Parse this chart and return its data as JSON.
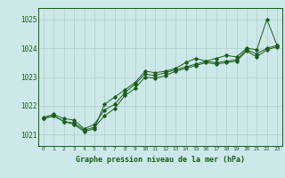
{
  "title": "Graphe pression niveau de la mer (hPa)",
  "bg_color": "#cce8e8",
  "grid_color": "#b0cccc",
  "line_color": "#1a5c1a",
  "xlim": [
    -0.5,
    23.5
  ],
  "ylim": [
    1020.6,
    1025.4
  ],
  "yticks": [
    1021,
    1022,
    1023,
    1024,
    1025
  ],
  "xticks": [
    0,
    1,
    2,
    3,
    4,
    5,
    6,
    7,
    8,
    9,
    10,
    11,
    12,
    13,
    14,
    15,
    16,
    17,
    18,
    19,
    20,
    21,
    22,
    23
  ],
  "series1": {
    "x": [
      0,
      1,
      2,
      3,
      4,
      5,
      6,
      7,
      8,
      9,
      10,
      11,
      12,
      13,
      14,
      15,
      16,
      17,
      18,
      19,
      20,
      21,
      22,
      23
    ],
    "y": [
      1021.6,
      1021.7,
      1021.55,
      1021.5,
      1021.2,
      1021.35,
      1021.85,
      1022.05,
      1022.45,
      1022.75,
      1023.1,
      1023.05,
      1023.15,
      1023.25,
      1023.35,
      1023.45,
      1023.55,
      1023.5,
      1023.55,
      1023.6,
      1023.95,
      1023.8,
      1024.0,
      1024.1
    ]
  },
  "series2": {
    "x": [
      0,
      1,
      2,
      3,
      4,
      5,
      6,
      7,
      8,
      9,
      10,
      11,
      12,
      13,
      14,
      15,
      16,
      17,
      18,
      19,
      20,
      21,
      22,
      23
    ],
    "y": [
      1021.55,
      1021.65,
      1021.45,
      1021.4,
      1021.15,
      1021.25,
      1021.65,
      1021.9,
      1022.35,
      1022.6,
      1023.0,
      1022.95,
      1023.05,
      1023.2,
      1023.3,
      1023.4,
      1023.5,
      1023.45,
      1023.5,
      1023.55,
      1023.9,
      1023.7,
      1023.95,
      1024.05
    ]
  },
  "series3": {
    "x": [
      0,
      1,
      2,
      3,
      4,
      5,
      6,
      7,
      8,
      9,
      10,
      11,
      12,
      13,
      14,
      15,
      16,
      17,
      18,
      19,
      20,
      21,
      22,
      23
    ],
    "y": [
      1021.55,
      1021.65,
      1021.45,
      1021.35,
      1021.1,
      1021.2,
      1022.05,
      1022.3,
      1022.55,
      1022.8,
      1023.2,
      1023.15,
      1023.2,
      1023.3,
      1023.5,
      1023.65,
      1023.55,
      1023.65,
      1023.75,
      1023.7,
      1024.0,
      1023.95,
      1025.0,
      1024.1
    ]
  }
}
